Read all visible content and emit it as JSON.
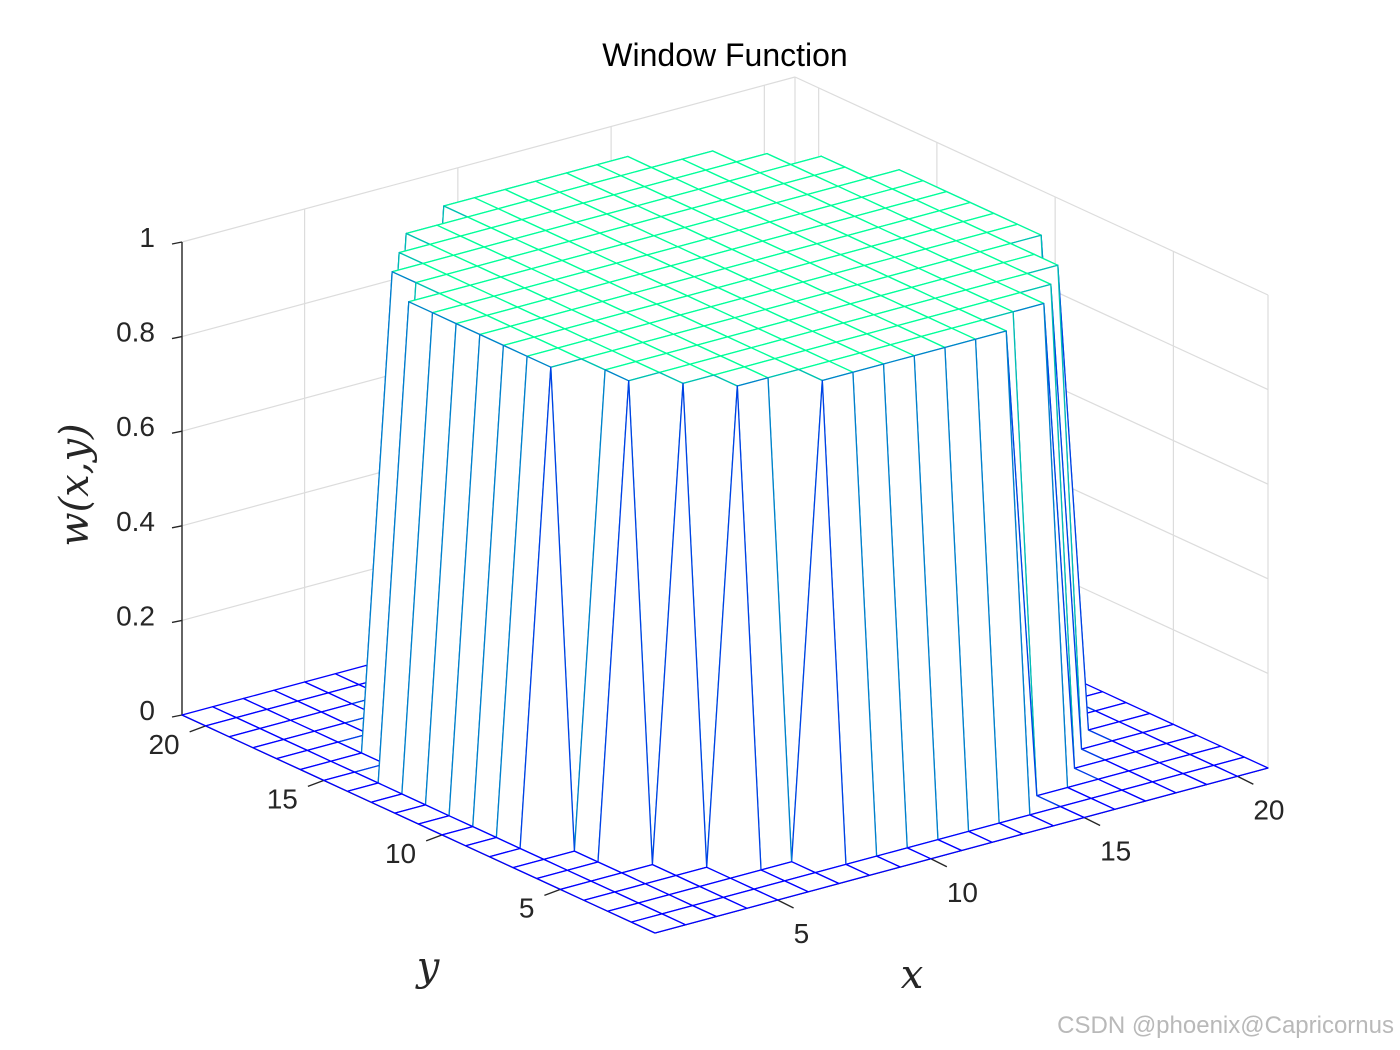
{
  "chart_data": {
    "type": "surface",
    "title": "Window Function",
    "xlabel": "x",
    "ylabel": "y",
    "zlabel": "w(x,y)",
    "xlim": [
      1,
      21
    ],
    "ylim": [
      1,
      21
    ],
    "zlim": [
      0,
      1
    ],
    "x_ticks": [
      5,
      10,
      15,
      20
    ],
    "y_ticks": [
      5,
      10,
      15,
      20
    ],
    "z_ticks": [
      "0",
      "0.2",
      "0.4",
      "0.6",
      "0.8",
      "1"
    ],
    "grid": true,
    "grid_size": 21,
    "center": [
      11,
      11
    ],
    "radius": 8.7,
    "inside_value": 1,
    "outside_value": 0,
    "colormap": {
      "low": "#0000ff",
      "high": "#00ff99"
    },
    "face_color": "#ffffff"
  },
  "watermark": "CSDN @phoenix@Capricornus"
}
